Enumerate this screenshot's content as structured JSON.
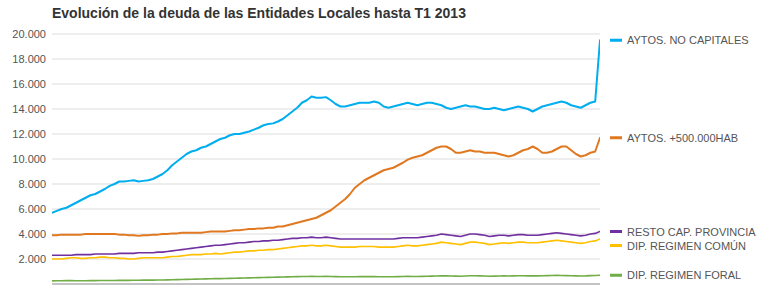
{
  "chart_data": {
    "type": "line",
    "title": "Evolución de la deuda de las Entidades Locales hasta T1 2013",
    "ylim": [
      0,
      20000
    ],
    "yticks": [
      {
        "value": 2000,
        "label": "2.000"
      },
      {
        "value": 4000,
        "label": "4.000"
      },
      {
        "value": 6000,
        "label": "6.000"
      },
      {
        "value": 8000,
        "label": "8.000"
      },
      {
        "value": 10000,
        "label": "10.000"
      },
      {
        "value": 12000,
        "label": "12.000"
      },
      {
        "value": 14000,
        "label": "14.000"
      },
      {
        "value": 16000,
        "label": "16.000"
      },
      {
        "value": 18000,
        "label": "18.000"
      },
      {
        "value": 20000,
        "label": "20.000"
      }
    ],
    "grid": true,
    "legend": "right",
    "tick_labels": "y",
    "series": [
      {
        "name": "AYTOS. NO CAPITALES",
        "color": "#00AEEF",
        "values": [
          5700,
          5850,
          6000,
          6100,
          6300,
          6500,
          6700,
          6900,
          7100,
          7200,
          7400,
          7600,
          7850,
          8000,
          8200,
          8200,
          8250,
          8300,
          8200,
          8250,
          8300,
          8400,
          8600,
          8800,
          9100,
          9500,
          9800,
          10100,
          10400,
          10600,
          10700,
          10900,
          11000,
          11200,
          11400,
          11600,
          11700,
          11900,
          12000,
          12000,
          12100,
          12200,
          12350,
          12500,
          12700,
          12800,
          12850,
          13000,
          13200,
          13500,
          13800,
          14100,
          14500,
          14700,
          15000,
          14900,
          14900,
          14950,
          14700,
          14400,
          14200,
          14200,
          14300,
          14400,
          14500,
          14500,
          14500,
          14600,
          14500,
          14200,
          14100,
          14200,
          14300,
          14400,
          14500,
          14400,
          14300,
          14400,
          14500,
          14500,
          14400,
          14300,
          14100,
          14000,
          14100,
          14200,
          14300,
          14200,
          14200,
          14100,
          14000,
          14000,
          14100,
          14000,
          13900,
          14000,
          14100,
          14200,
          14100,
          14000,
          13800,
          14000,
          14200,
          14300,
          14400,
          14500,
          14600,
          14500,
          14300,
          14200,
          14100,
          14300,
          14500,
          14600,
          19500
        ]
      },
      {
        "name": "AYTOS. +500.000HAB",
        "color": "#E07820",
        "values": [
          3900,
          3900,
          3950,
          3950,
          3950,
          3950,
          3950,
          4000,
          4000,
          4000,
          4000,
          4000,
          4000,
          4000,
          3950,
          3950,
          3900,
          3900,
          3850,
          3900,
          3900,
          3950,
          3950,
          4000,
          4000,
          4050,
          4050,
          4100,
          4100,
          4100,
          4100,
          4100,
          4150,
          4200,
          4200,
          4200,
          4200,
          4250,
          4300,
          4300,
          4350,
          4400,
          4400,
          4450,
          4450,
          4500,
          4500,
          4600,
          4600,
          4700,
          4800,
          4900,
          5000,
          5100,
          5200,
          5300,
          5500,
          5700,
          5900,
          6200,
          6500,
          6800,
          7200,
          7700,
          8000,
          8300,
          8500,
          8700,
          8900,
          9100,
          9200,
          9300,
          9500,
          9700,
          9950,
          10100,
          10200,
          10300,
          10500,
          10700,
          10900,
          11000,
          11000,
          10800,
          10500,
          10500,
          10600,
          10700,
          10600,
          10600,
          10500,
          10500,
          10500,
          10400,
          10300,
          10200,
          10300,
          10500,
          10700,
          10800,
          11000,
          10800,
          10500,
          10500,
          10600,
          10800,
          11000,
          11000,
          10700,
          10400,
          10200,
          10300,
          10500,
          10600,
          11700
        ]
      },
      {
        "name": "RESTO CAP. PROVINCIA",
        "color": "#7030A0",
        "values": [
          2300,
          2300,
          2300,
          2300,
          2300,
          2350,
          2350,
          2350,
          2350,
          2400,
          2400,
          2400,
          2400,
          2400,
          2450,
          2450,
          2450,
          2450,
          2500,
          2500,
          2500,
          2500,
          2550,
          2550,
          2600,
          2650,
          2700,
          2750,
          2800,
          2850,
          2900,
          2950,
          3000,
          3050,
          3100,
          3100,
          3150,
          3200,
          3250,
          3300,
          3300,
          3350,
          3400,
          3400,
          3450,
          3450,
          3500,
          3500,
          3550,
          3600,
          3650,
          3650,
          3700,
          3700,
          3750,
          3700,
          3700,
          3750,
          3700,
          3650,
          3600,
          3600,
          3600,
          3600,
          3600,
          3600,
          3600,
          3600,
          3600,
          3600,
          3600,
          3600,
          3650,
          3700,
          3700,
          3700,
          3700,
          3750,
          3800,
          3850,
          3900,
          4000,
          3950,
          3900,
          3850,
          3800,
          3900,
          4000,
          4000,
          3950,
          3900,
          3800,
          3850,
          3900,
          3900,
          3850,
          3900,
          3950,
          3950,
          3900,
          3900,
          3900,
          3950,
          4000,
          4050,
          4100,
          4050,
          4000,
          3950,
          3900,
          3850,
          3900,
          4000,
          4050,
          4200
        ]
      },
      {
        "name": "DIP. REGIMEN COMÚN",
        "color": "#FFC000",
        "values": [
          2000,
          2000,
          2000,
          2050,
          2100,
          2100,
          2050,
          2050,
          2100,
          2100,
          2150,
          2150,
          2100,
          2100,
          2050,
          2050,
          2000,
          2000,
          2050,
          2100,
          2100,
          2100,
          2100,
          2100,
          2150,
          2200,
          2200,
          2250,
          2300,
          2350,
          2350,
          2350,
          2400,
          2400,
          2450,
          2400,
          2450,
          2500,
          2550,
          2550,
          2600,
          2650,
          2650,
          2700,
          2700,
          2750,
          2750,
          2800,
          2850,
          2900,
          2950,
          3000,
          3050,
          3050,
          3100,
          3050,
          3050,
          3100,
          3050,
          3000,
          2950,
          2950,
          2950,
          2950,
          3000,
          3000,
          3000,
          3000,
          2950,
          2950,
          2950,
          2950,
          3000,
          3050,
          3100,
          3050,
          3050,
          3100,
          3150,
          3200,
          3250,
          3350,
          3300,
          3250,
          3200,
          3150,
          3250,
          3350,
          3350,
          3300,
          3250,
          3150,
          3200,
          3250,
          3300,
          3250,
          3300,
          3350,
          3350,
          3300,
          3300,
          3300,
          3350,
          3400,
          3450,
          3500,
          3450,
          3400,
          3350,
          3300,
          3250,
          3300,
          3400,
          3450,
          3600
        ]
      },
      {
        "name": "DIP. REGIMEN FORAL",
        "color": "#70AD47",
        "values": [
          250,
          260,
          260,
          270,
          270,
          260,
          260,
          260,
          270,
          270,
          280,
          280,
          280,
          280,
          290,
          290,
          290,
          300,
          300,
          310,
          310,
          310,
          320,
          320,
          330,
          340,
          350,
          360,
          370,
          380,
          390,
          400,
          410,
          420,
          430,
          430,
          440,
          450,
          460,
          470,
          480,
          490,
          500,
          510,
          520,
          530,
          540,
          550,
          560,
          570,
          580,
          590,
          600,
          600,
          610,
          600,
          600,
          610,
          600,
          590,
          580,
          580,
          580,
          580,
          590,
          590,
          590,
          590,
          580,
          580,
          580,
          580,
          590,
          600,
          610,
          600,
          600,
          610,
          620,
          630,
          640,
          660,
          650,
          640,
          630,
          620,
          640,
          660,
          660,
          650,
          640,
          620,
          630,
          640,
          650,
          640,
          650,
          660,
          660,
          650,
          650,
          650,
          660,
          670,
          680,
          690,
          680,
          670,
          660,
          650,
          640,
          650,
          670,
          680,
          700
        ]
      }
    ]
  }
}
